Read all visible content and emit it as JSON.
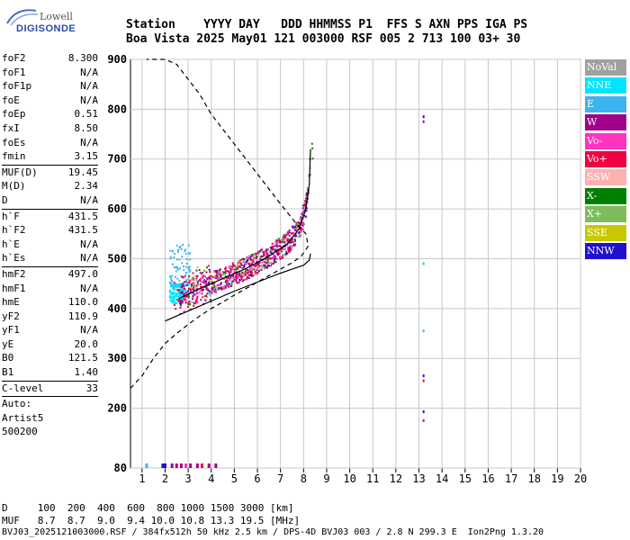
{
  "logo": {
    "line1": "Lowell",
    "line2": "DIGISONDE"
  },
  "header": {
    "line1": "Station    YYYY DAY   DDD HHMMSS P1  FFS S AXN PPS IGA PS",
    "line2": "Boa Vista 2025 May01 121 003000 RSF 005 2 713 100 03+ 30"
  },
  "params": {
    "group1": [
      {
        "k": "foF2",
        "v": "8.300"
      },
      {
        "k": "foF1",
        "v": "N/A"
      },
      {
        "k": "foF1p",
        "v": "N/A"
      },
      {
        "k": "foE",
        "v": "N/A"
      },
      {
        "k": "foEp",
        "v": "0.51"
      },
      {
        "k": "fxI",
        "v": "8.50"
      },
      {
        "k": "foEs",
        "v": "N/A"
      },
      {
        "k": "fmin",
        "v": "3.15"
      }
    ],
    "group2": [
      {
        "k": "MUF(D)",
        "v": "19.45"
      },
      {
        "k": "M(D)",
        "v": "2.34"
      },
      {
        "k": "D",
        "v": "N/A"
      }
    ],
    "group3": [
      {
        "k": "h`F",
        "v": "431.5"
      },
      {
        "k": "h`F2",
        "v": "431.5"
      },
      {
        "k": "h`E",
        "v": "N/A"
      },
      {
        "k": "h`Es",
        "v": "N/A"
      }
    ],
    "group4": [
      {
        "k": "hmF2",
        "v": "497.0"
      },
      {
        "k": "hmF1",
        "v": "N/A"
      },
      {
        "k": "hmE",
        "v": "110.0"
      },
      {
        "k": "yF2",
        "v": "110.9"
      },
      {
        "k": "yF1",
        "v": "N/A"
      },
      {
        "k": "yE",
        "v": "20.0"
      },
      {
        "k": "B0",
        "v": "121.5"
      },
      {
        "k": "B1",
        "v": "1.40"
      }
    ],
    "group5": [
      {
        "k": "C-level",
        "v": "33"
      }
    ],
    "auto": [
      "Auto:",
      "Artist5",
      "500200"
    ]
  },
  "legend": [
    {
      "label": "NoVal",
      "color": "#a0a0a0"
    },
    {
      "label": "NNE",
      "color": "#00e5ff"
    },
    {
      "label": "E",
      "color": "#3cb4f0"
    },
    {
      "label": "W",
      "color": "#a0008c"
    },
    {
      "label": "Vo-",
      "color": "#ff33c0"
    },
    {
      "label": "Vo+",
      "color": "#f00040"
    },
    {
      "label": "SSW",
      "color": "#ffb0b0"
    },
    {
      "label": "X-",
      "color": "#008000"
    },
    {
      "label": "X+",
      "color": "#7cbc5a"
    },
    {
      "label": "SSE",
      "color": "#c8c800"
    },
    {
      "label": "NNW",
      "color": "#2010d0"
    }
  ],
  "footer": {
    "line1": "D     100  200  400  600  800 1000 1500 3000 [km]",
    "line2": "MUF   8.7  8.7  9.0  9.4 10.0 10.8 13.3 19.5 [MHz]",
    "line3": "BVJ03_2025121003000.RSF / 384fx512h 50 kHz 2.5 km / DPS-4D BVJ03 003 / 2.8 N 299.3 E  Ion2Png 1.3.20"
  },
  "chart_data": {
    "type": "scatter",
    "x_ticks": [
      1,
      2,
      3,
      4,
      5,
      6,
      7,
      8,
      9,
      10,
      11,
      12,
      13,
      14,
      15,
      16,
      17,
      18,
      19,
      20
    ],
    "y_ticks": [
      80,
      200,
      300,
      400,
      500,
      600,
      700,
      800,
      900
    ],
    "x_range": [
      0.5,
      20
    ],
    "y_range": [
      80,
      900
    ],
    "grid": true,
    "legend_position": "right",
    "profile_solid": [
      [
        2.0,
        375
      ],
      [
        2.5,
        385
      ],
      [
        3.0,
        395
      ],
      [
        3.5,
        405
      ],
      [
        4.0,
        415
      ],
      [
        4.5,
        425
      ],
      [
        5.0,
        435
      ],
      [
        5.5,
        444
      ],
      [
        6.0,
        453
      ],
      [
        6.5,
        462
      ],
      [
        7.0,
        471
      ],
      [
        7.5,
        479
      ],
      [
        8.0,
        487
      ],
      [
        8.25,
        497
      ],
      [
        8.3,
        510
      ]
    ],
    "trace_solid": [
      [
        2.6,
        420
      ],
      [
        3.5,
        440
      ],
      [
        4.5,
        460
      ],
      [
        5.5,
        480
      ],
      [
        6.5,
        505
      ],
      [
        7.3,
        530
      ],
      [
        7.8,
        560
      ],
      [
        8.1,
        600
      ],
      [
        8.25,
        650
      ],
      [
        8.3,
        720
      ]
    ],
    "profile_dashed": [
      [
        0.5,
        240
      ],
      [
        1.0,
        265
      ],
      [
        1.5,
        300
      ],
      [
        2.0,
        330
      ],
      [
        2.5,
        350
      ],
      [
        3.0,
        368
      ],
      [
        3.5,
        385
      ],
      [
        4.0,
        400
      ],
      [
        4.5,
        413
      ],
      [
        5.0,
        427
      ],
      [
        5.5,
        440
      ],
      [
        6.0,
        453
      ],
      [
        6.5,
        466
      ],
      [
        7.0,
        479
      ],
      [
        7.5,
        492
      ],
      [
        7.9,
        505
      ],
      [
        8.2,
        525
      ],
      [
        8.1,
        550
      ],
      [
        7.6,
        575
      ],
      [
        7.0,
        610
      ],
      [
        6.0,
        670
      ],
      [
        5.0,
        730
      ],
      [
        4.0,
        790
      ],
      [
        3.5,
        830
      ],
      [
        3.0,
        860
      ],
      [
        2.5,
        890
      ],
      [
        2.0,
        900
      ],
      [
        1.2,
        900
      ]
    ],
    "clusters": [
      {
        "color": "#00e5ff",
        "n": 160,
        "x": [
          2.2,
          2.9
        ],
        "y": [
          410,
          450
        ]
      },
      {
        "color": "#3cb4f0",
        "n": 70,
        "x": [
          2.2,
          3.1
        ],
        "y": [
          440,
          530
        ]
      },
      {
        "color": "#a0008c",
        "n": 420,
        "x": [
          2.6,
          8.3
        ],
        "y": [
          430,
          620
        ],
        "trend": true
      },
      {
        "color": "#ff33c0",
        "n": 140,
        "x": [
          2.8,
          8.2
        ],
        "y": [
          430,
          600
        ],
        "trend": true
      },
      {
        "color": "#f00040",
        "n": 160,
        "x": [
          2.3,
          8.2
        ],
        "y": [
          425,
          600
        ],
        "trend": true
      },
      {
        "color": "#008000",
        "n": 50,
        "x": [
          3.0,
          8.4
        ],
        "y": [
          440,
          650
        ],
        "trend": true
      },
      {
        "color": "#7cbc5a",
        "n": 50,
        "x": [
          3.0,
          8.4
        ],
        "y": [
          440,
          650
        ],
        "trend": true
      },
      {
        "color": "#c8c800",
        "n": 20,
        "x": [
          3.0,
          6.0
        ],
        "y": [
          440,
          520
        ],
        "trend": true
      },
      {
        "color": "#2010d0",
        "n": 40,
        "x": [
          2.5,
          8.3
        ],
        "y": [
          430,
          620
        ],
        "trend": true
      },
      {
        "color": "#a0a0a0",
        "n": 30,
        "x": [
          2.5,
          7.0
        ],
        "y": [
          440,
          540
        ],
        "trend": true
      }
    ],
    "isolated_points": [
      {
        "x": 13.2,
        "y": 785,
        "color": "#2010d0"
      },
      {
        "x": 13.2,
        "y": 775,
        "color": "#a0008c"
      },
      {
        "x": 13.2,
        "y": 490,
        "color": "#3cb4f0"
      },
      {
        "x": 13.2,
        "y": 355,
        "color": "#3cb4f0"
      },
      {
        "x": 13.2,
        "y": 265,
        "color": "#2010d0"
      },
      {
        "x": 13.2,
        "y": 255,
        "color": "#f00040"
      },
      {
        "x": 13.2,
        "y": 193,
        "color": "#2010d0"
      },
      {
        "x": 13.2,
        "y": 175,
        "color": "#f00040"
      }
    ],
    "bottom_marks": [
      {
        "x": 1.2,
        "color": "#3cb4f0"
      },
      {
        "x": 1.9,
        "color": "#2010d0"
      },
      {
        "x": 2.0,
        "color": "#2010d0"
      },
      {
        "x": 2.3,
        "color": "#a0008c"
      },
      {
        "x": 2.5,
        "color": "#a0008c"
      },
      {
        "x": 2.7,
        "color": "#a0008c"
      },
      {
        "x": 2.9,
        "color": "#ff33c0"
      },
      {
        "x": 3.1,
        "color": "#a0008c"
      },
      {
        "x": 3.4,
        "color": "#a0008c"
      },
      {
        "x": 3.6,
        "color": "#f00040"
      },
      {
        "x": 3.9,
        "color": "#a0008c"
      },
      {
        "x": 4.2,
        "color": "#a0008c"
      }
    ]
  }
}
